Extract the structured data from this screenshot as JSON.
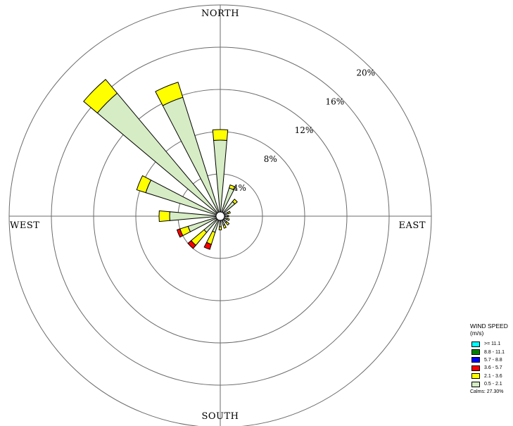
{
  "chart_data": {
    "type": "wind-rose",
    "directions": {
      "north": "NORTH",
      "south": "SOUTH",
      "east": "EAST",
      "west": "WEST"
    },
    "radial_unit": "%",
    "radial_ticks": [
      4,
      8,
      12,
      16,
      20
    ],
    "radial_tick_labels": [
      "4%",
      "8%",
      "12%",
      "16%",
      "20%"
    ],
    "legend": {
      "title": "WIND SPEED",
      "unit": "(m/s)",
      "bins": [
        {
          "label": ">= 11.1",
          "color": "#00ffff"
        },
        {
          "label": "8.8 - 11.1",
          "color": "#008000"
        },
        {
          "label": "5.7 - 8.8",
          "color": "#0000ff"
        },
        {
          "label": "3.6 - 5.7",
          "color": "#ff0000"
        },
        {
          "label": "2.1 - 3.6",
          "color": "#ffff00"
        },
        {
          "label": "0.5 - 2.1",
          "color": "#d6ecc4"
        }
      ]
    },
    "calms_text": "Calms: 27.30%",
    "sector_width_deg": 10,
    "sectors": [
      {
        "direction_deg": 0,
        "values": [
          0,
          0,
          0,
          0,
          1.0,
          6.8
        ]
      },
      {
        "direction_deg": 22.5,
        "values": [
          0,
          0,
          0,
          0,
          0.3,
          2.4
        ]
      },
      {
        "direction_deg": 45,
        "values": [
          0,
          0,
          0,
          0,
          0.3,
          1.4
        ]
      },
      {
        "direction_deg": 67.5,
        "values": [
          0,
          0,
          0,
          0,
          0.2,
          0.4
        ]
      },
      {
        "direction_deg": 90,
        "values": [
          0,
          0,
          0,
          0,
          0.1,
          0.3
        ]
      },
      {
        "direction_deg": 112.5,
        "values": [
          0,
          0,
          0,
          0,
          0.2,
          0.3
        ]
      },
      {
        "direction_deg": 135,
        "values": [
          0,
          0,
          0,
          0,
          0.3,
          0.4
        ]
      },
      {
        "direction_deg": 157.5,
        "values": [
          0,
          0,
          0,
          0,
          0.3,
          0.5
        ]
      },
      {
        "direction_deg": 180,
        "values": [
          0,
          0,
          0,
          0,
          0.3,
          0.6
        ]
      },
      {
        "direction_deg": 202.5,
        "values": [
          0,
          0,
          0,
          0.5,
          1.2,
          1.2
        ]
      },
      {
        "direction_deg": 225,
        "values": [
          0,
          0,
          0,
          0.4,
          1.6,
          1.6
        ]
      },
      {
        "direction_deg": 247.5,
        "values": [
          0,
          0,
          0,
          0.3,
          0.8,
          2.8
        ]
      },
      {
        "direction_deg": 270,
        "values": [
          0,
          0,
          0,
          0,
          1.0,
          4.4
        ]
      },
      {
        "direction_deg": 292.5,
        "values": [
          0,
          0,
          0,
          0,
          0.9,
          7.0
        ]
      },
      {
        "direction_deg": 315,
        "values": [
          0,
          0,
          0,
          0,
          1.7,
          14.8
        ]
      },
      {
        "direction_deg": 337.5,
        "values": [
          0,
          0,
          0,
          0,
          1.5,
          11.4
        ]
      }
    ]
  }
}
